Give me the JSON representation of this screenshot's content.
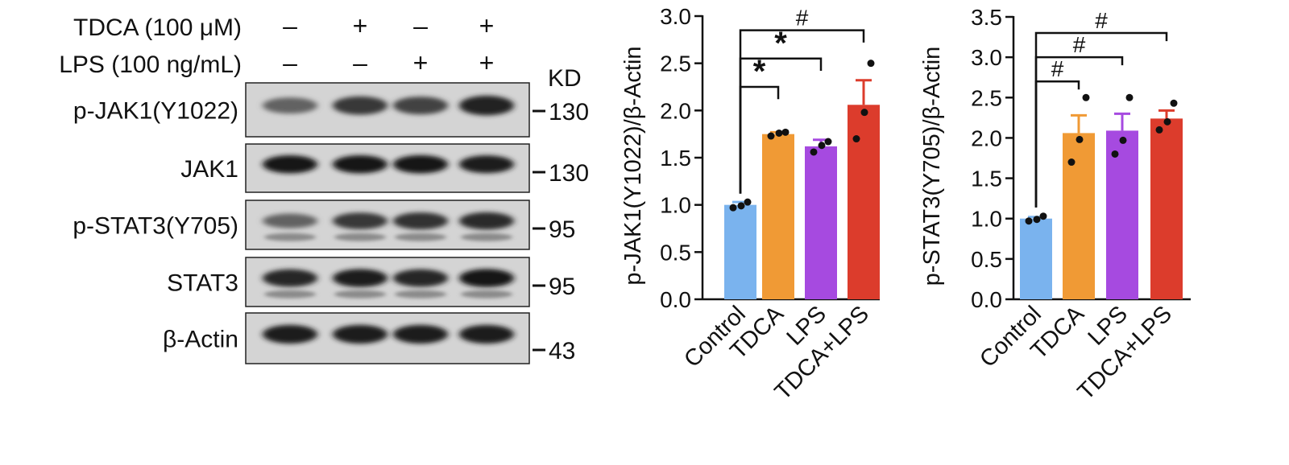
{
  "blot": {
    "treatments": [
      {
        "label": "TDCA (100 μM)",
        "signs": [
          "–",
          "+",
          "–",
          "+"
        ]
      },
      {
        "label": "LPS (100 ng/mL)",
        "signs": [
          "–",
          "–",
          "+",
          "+"
        ]
      }
    ],
    "kd_header": "KD",
    "panels": [
      {
        "protein": "p-JAK1(Y1022)",
        "kd": "130",
        "bands": [
          0.55,
          0.78,
          0.72,
          0.9
        ],
        "lower_band": false
      },
      {
        "protein": "JAK1",
        "kd": "130",
        "bands": [
          0.95,
          0.95,
          0.97,
          0.92
        ],
        "lower_band": false
      },
      {
        "protein": "p-STAT3(Y705)",
        "kd": "95",
        "bands": [
          0.55,
          0.78,
          0.82,
          0.85
        ],
        "lower_band": true
      },
      {
        "protein": "STAT3",
        "kd": "95",
        "bands": [
          0.88,
          0.92,
          0.88,
          0.95
        ],
        "lower_band": true
      },
      {
        "protein": "β-Actin",
        "kd": "43",
        "bands": [
          0.92,
          0.92,
          0.92,
          0.92
        ],
        "lower_band": false
      }
    ]
  },
  "colors": {
    "Control": "#7ab3ee",
    "TDCA": "#f09a35",
    "LPS": "#a64ae0",
    "TDCA+LPS": "#dc3c2c"
  },
  "chart_data": [
    {
      "type": "bar",
      "ylabel": "p-JAK1(Y1022)/β-Actin",
      "categories": [
        "Control",
        "TDCA",
        "LPS",
        "TDCA+LPS"
      ],
      "values": [
        1.0,
        1.75,
        1.62,
        2.06
      ],
      "errors": [
        0.03,
        0.02,
        0.07,
        0.26
      ],
      "points": [
        [
          0.97,
          1.03,
          0.99
        ],
        [
          1.73,
          1.77,
          1.76
        ],
        [
          1.56,
          1.67,
          1.63
        ],
        [
          1.7,
          2.5,
          1.98
        ]
      ],
      "ylim": [
        0,
        3.0
      ],
      "yticks": [
        "0.0",
        "0.5",
        "1.0",
        "1.5",
        "2.0",
        "2.5",
        "3.0"
      ],
      "yticks_values": [
        0,
        0.5,
        1.0,
        1.5,
        2.0,
        2.5,
        3.0
      ],
      "annotations": [
        {
          "from": 0,
          "to": 1,
          "symbol": "*",
          "level": 2.25
        },
        {
          "from": 0,
          "to": 2,
          "symbol": "*",
          "level": 2.55
        },
        {
          "from": 0,
          "to": 3,
          "symbol": "#",
          "level": 2.85
        }
      ]
    },
    {
      "type": "bar",
      "ylabel": "p-STAT3(Y705)/β-Actin",
      "categories": [
        "Control",
        "TDCA",
        "LPS",
        "TDCA+LPS"
      ],
      "values": [
        1.0,
        2.06,
        2.09,
        2.24
      ],
      "errors": [
        0.02,
        0.22,
        0.21,
        0.1
      ],
      "points": [
        [
          0.97,
          1.03,
          0.99
        ],
        [
          1.7,
          2.5,
          1.98
        ],
        [
          1.8,
          2.5,
          1.97
        ],
        [
          2.1,
          2.43,
          2.2
        ]
      ],
      "ylim": [
        0,
        3.5
      ],
      "yticks": [
        "0.0",
        "0.5",
        "1.0",
        "1.5",
        "2.0",
        "2.5",
        "3.0",
        "3.5"
      ],
      "yticks_values": [
        0,
        0.5,
        1.0,
        1.5,
        2.0,
        2.5,
        3.0,
        3.5
      ],
      "annotations": [
        {
          "from": 0,
          "to": 1,
          "symbol": "#",
          "level": 2.7
        },
        {
          "from": 0,
          "to": 2,
          "symbol": "#",
          "level": 3.0
        },
        {
          "from": 0,
          "to": 3,
          "symbol": "#",
          "level": 3.3
        }
      ]
    }
  ]
}
